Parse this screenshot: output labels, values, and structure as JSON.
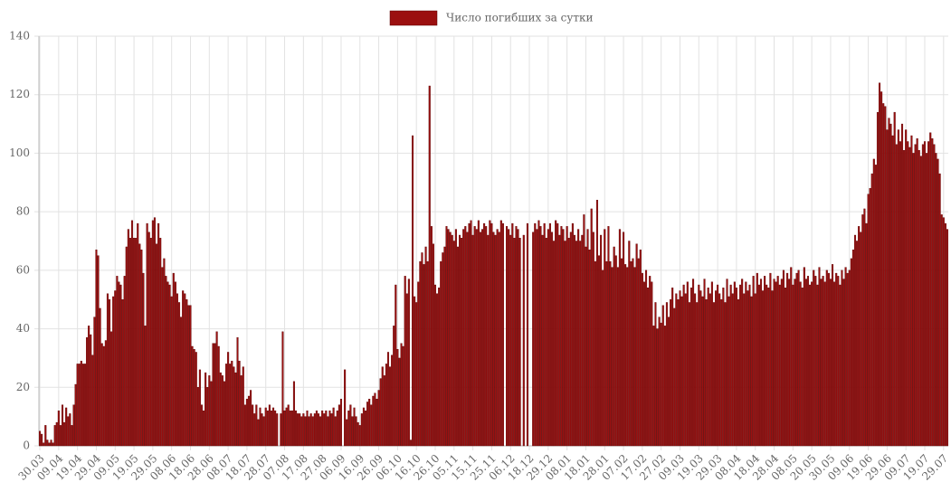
{
  "chart_data": {
    "type": "bar",
    "categories": [
      "30.03",
      null,
      null,
      null,
      null,
      null,
      null,
      null,
      null,
      null,
      "09.04",
      null,
      null,
      null,
      null,
      null,
      null,
      null,
      null,
      null,
      "19.04",
      null,
      null,
      null,
      null,
      null,
      null,
      null,
      null,
      null,
      "29.04",
      null,
      null,
      null,
      null,
      null,
      null,
      null,
      null,
      null,
      "09.05",
      null,
      null,
      null,
      null,
      null,
      null,
      null,
      null,
      null,
      "19.05",
      null,
      null,
      null,
      null,
      null,
      null,
      null,
      null,
      null,
      "29.05",
      null,
      null,
      null,
      null,
      null,
      null,
      null,
      null,
      null,
      "08.06",
      null,
      null,
      null,
      null,
      null,
      null,
      null,
      null,
      null,
      "18.06",
      null,
      null,
      null,
      null,
      null,
      null,
      null,
      null,
      null,
      "28.06",
      null,
      null,
      null,
      null,
      null,
      null,
      null,
      null,
      null,
      "08.07",
      null,
      null,
      null,
      null,
      null,
      null,
      null,
      null,
      null,
      "18.07",
      null,
      null,
      null,
      null,
      null,
      null,
      null,
      null,
      null,
      "28.07",
      null,
      null,
      null,
      null,
      null,
      null,
      null,
      null,
      null,
      "07.08",
      null,
      null,
      null,
      null,
      null,
      null,
      null,
      null,
      null,
      "17.08",
      null,
      null,
      null,
      null,
      null,
      null,
      null,
      null,
      null,
      "27.08",
      null,
      null,
      null,
      null,
      null,
      null,
      null,
      null,
      null,
      "06.09",
      null,
      null,
      null,
      null,
      null,
      null,
      null,
      null,
      null,
      "16.09",
      null,
      null,
      null,
      null,
      null,
      null,
      null,
      null,
      null,
      "26.09",
      null,
      null,
      null,
      null,
      null,
      null,
      null,
      null,
      null,
      "06.10",
      null,
      null,
      null,
      null,
      null,
      null,
      null,
      null,
      null,
      "16.10",
      null,
      null,
      null,
      null,
      null,
      null,
      null,
      null,
      null,
      "26.10",
      null,
      null,
      null,
      null,
      null,
      null,
      null,
      null,
      null,
      "05.11",
      null,
      null,
      null,
      null,
      null,
      null,
      null,
      null,
      null,
      "15.11",
      null,
      null,
      null,
      null,
      null,
      null,
      null,
      null,
      null,
      "25.11",
      null,
      null,
      null,
      null,
      null,
      null,
      null,
      null,
      null,
      "06.12",
      null,
      null,
      null,
      null,
      null,
      null,
      null,
      null,
      null,
      "18.12",
      null,
      null,
      null,
      null,
      null,
      null,
      null,
      null,
      null,
      "29.12",
      null,
      null,
      null,
      null,
      null,
      null,
      null,
      null,
      null,
      "08.01",
      null,
      null,
      null,
      null,
      null,
      null,
      null,
      null,
      null,
      "18.01",
      null,
      null,
      null,
      null,
      null,
      null,
      null,
      null,
      null,
      "28.01",
      null,
      null,
      null,
      null,
      null,
      null,
      null,
      null,
      null,
      "07.02",
      null,
      null,
      null,
      null,
      null,
      null,
      null,
      null,
      null,
      "17.02",
      null,
      null,
      null,
      null,
      null,
      null,
      null,
      null,
      null,
      "27.02",
      null,
      null,
      null,
      null,
      null,
      null,
      null,
      null,
      null,
      "09.03",
      null,
      null,
      null,
      null,
      null,
      null,
      null,
      null,
      null,
      "19.03",
      null,
      null,
      null,
      null,
      null,
      null,
      null,
      null,
      null,
      "29.03",
      null,
      null,
      null,
      null,
      null,
      null,
      null,
      null,
      null,
      "08.04",
      null,
      null,
      null,
      null,
      null,
      null,
      null,
      null,
      null,
      "18.04",
      null,
      null,
      null,
      null,
      null,
      null,
      null,
      null,
      null,
      "28.04",
      null,
      null,
      null,
      null,
      null,
      null,
      null,
      null,
      null,
      "08.05",
      null,
      null,
      null,
      null,
      null,
      null,
      null,
      null,
      null,
      "20.05",
      null,
      null,
      null,
      null,
      null,
      null,
      null,
      null,
      null,
      "30.05",
      null,
      null,
      null,
      null,
      null,
      null,
      null,
      null,
      null,
      "09.06",
      null,
      null,
      null,
      null,
      null,
      null,
      null,
      null,
      null,
      "19.06",
      null,
      null,
      null,
      null,
      null,
      null,
      null,
      null,
      null,
      "29.06",
      null,
      null,
      null,
      null,
      null,
      null,
      null,
      null,
      null,
      "09.07",
      null,
      null,
      null,
      null,
      null,
      null,
      null,
      null,
      null,
      "19.07",
      null,
      null,
      null,
      null,
      null,
      null,
      null,
      null,
      null,
      "29.07",
      null,
      null
    ],
    "series": [
      {
        "name": "Число погибших за сутки",
        "color": "#9b1010",
        "values": [
          5,
          4,
          1,
          7,
          2,
          1,
          2,
          1,
          7,
          8,
          12,
          7,
          14,
          8,
          13,
          10,
          11,
          7,
          14,
          21,
          28,
          28,
          29,
          28,
          28,
          37,
          41,
          38,
          31,
          44,
          67,
          65,
          47,
          35,
          34,
          36,
          52,
          50,
          39,
          51,
          53,
          58,
          56,
          55,
          50,
          58,
          68,
          74,
          71,
          77,
          71,
          71,
          76,
          69,
          67,
          59,
          41,
          76,
          73,
          71,
          77,
          78,
          69,
          76,
          71,
          61,
          64,
          58,
          56,
          55,
          51,
          59,
          56,
          52,
          49,
          44,
          53,
          52,
          50,
          48,
          48,
          34,
          33,
          32,
          20,
          26,
          14,
          12,
          25,
          20,
          24,
          22,
          35,
          35,
          39,
          34,
          25,
          24,
          22,
          28,
          32,
          28,
          29,
          27,
          25,
          37,
          29,
          24,
          27,
          14,
          16,
          17,
          19,
          14,
          11,
          14,
          9,
          13,
          11,
          10,
          13,
          12,
          14,
          12,
          13,
          12,
          11,
          null,
          11,
          39,
          12,
          13,
          14,
          12,
          12,
          22,
          12,
          11,
          11,
          10,
          11,
          10,
          12,
          10,
          11,
          10,
          11,
          12,
          11,
          10,
          12,
          11,
          12,
          10,
          12,
          11,
          13,
          10,
          12,
          14,
          16,
          null,
          26,
          9,
          12,
          14,
          10,
          13,
          10,
          8,
          7,
          11,
          13,
          12,
          15,
          16,
          14,
          17,
          18,
          16,
          19,
          23,
          27,
          24,
          28,
          32,
          27,
          31,
          41,
          55,
          33,
          30,
          35,
          34,
          58,
          52,
          57,
          2,
          106,
          51,
          49,
          56,
          63,
          66,
          62,
          68,
          63,
          123,
          75,
          69,
          55,
          52,
          54,
          63,
          66,
          68,
          75,
          74,
          73,
          72,
          70,
          74,
          68,
          72,
          71,
          74,
          75,
          73,
          76,
          77,
          72,
          75,
          74,
          77,
          73,
          74,
          76,
          75,
          72,
          77,
          76,
          73,
          72,
          74,
          73,
          77,
          76,
          null,
          75,
          74,
          72,
          76,
          71,
          75,
          74,
          71,
          null,
          72,
          null,
          76,
          null,
          null,
          73,
          76,
          74,
          77,
          75,
          72,
          76,
          71,
          74,
          76,
          73,
          70,
          77,
          76,
          72,
          75,
          74,
          70,
          75,
          71,
          73,
          76,
          72,
          70,
          74,
          70,
          72,
          79,
          68,
          74,
          67,
          81,
          73,
          63,
          84,
          65,
          72,
          60,
          74,
          63,
          75,
          63,
          61,
          68,
          65,
          61,
          74,
          64,
          73,
          62,
          61,
          70,
          63,
          64,
          61,
          69,
          64,
          67,
          59,
          56,
          60,
          54,
          58,
          56,
          41,
          49,
          40,
          44,
          42,
          48,
          41,
          49,
          44,
          50,
          54,
          47,
          52,
          50,
          53,
          51,
          55,
          52,
          56,
          49,
          54,
          57,
          52,
          49,
          55,
          53,
          51,
          57,
          50,
          54,
          52,
          56,
          49,
          53,
          55,
          52,
          50,
          54,
          49,
          57,
          51,
          55,
          52,
          56,
          54,
          50,
          55,
          57,
          52,
          56,
          53,
          55,
          51,
          58,
          52,
          59,
          55,
          57,
          53,
          58,
          55,
          54,
          59,
          53,
          57,
          56,
          58,
          55,
          57,
          60,
          54,
          59,
          57,
          61,
          55,
          57,
          59,
          60,
          56,
          54,
          61,
          57,
          58,
          55,
          56,
          60,
          58,
          55,
          61,
          57,
          58,
          56,
          60,
          59,
          57,
          62,
          56,
          59,
          58,
          55,
          60,
          57,
          61,
          59,
          60,
          64,
          67,
          72,
          70,
          75,
          73,
          79,
          81,
          76,
          86,
          88,
          93,
          98,
          96,
          114,
          124,
          121,
          117,
          116,
          108,
          112,
          110,
          106,
          114,
          103,
          108,
          104,
          110,
          101,
          108,
          104,
          102,
          106,
          100,
          103,
          105,
          101,
          99,
          103,
          104,
          100,
          104,
          107,
          105,
          103,
          100,
          98,
          93,
          79,
          78,
          76,
          74
        ]
      }
    ],
    "ylim": [
      0,
      140
    ],
    "yticks": [
      0,
      20,
      40,
      60,
      80,
      100,
      120,
      140
    ],
    "grid": true,
    "legend": "top"
  }
}
